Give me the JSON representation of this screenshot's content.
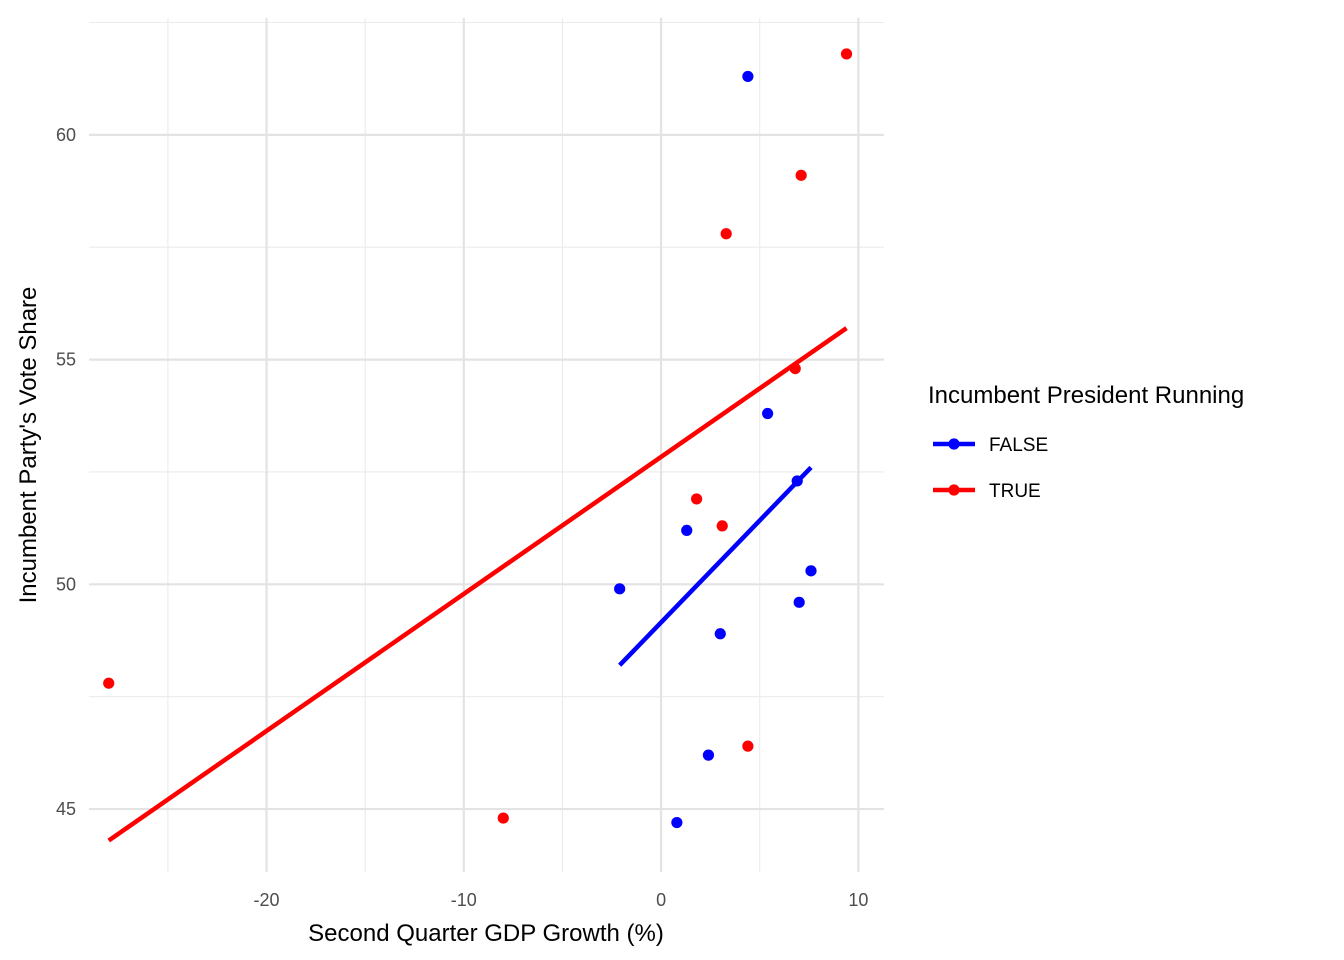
{
  "chart_data": {
    "type": "scatter",
    "title": "",
    "xlabel": "Second Quarter GDP Growth (%)",
    "ylabel": "Incumbent Party's Vote Share",
    "xlim": [
      -29,
      11.3
    ],
    "ylim": [
      43.6,
      62.6
    ],
    "x_major_ticks": [
      -20,
      -10,
      0,
      10
    ],
    "x_minor_ticks": [
      -25,
      -15,
      -5,
      5
    ],
    "y_major_ticks": [
      45,
      50,
      55,
      60
    ],
    "y_minor_ticks": [
      47.5,
      52.5,
      57.5,
      62.5
    ],
    "x_tick_labels": [
      "-20",
      "-10",
      "0",
      "10"
    ],
    "y_tick_labels": [
      "45",
      "50",
      "55",
      "60"
    ],
    "grid": true,
    "legend": {
      "title": "Incumbent President Running",
      "position": "right"
    },
    "series": [
      {
        "name": "FALSE",
        "color": "#0000ff",
        "points": [
          {
            "x": 4.4,
            "y": 61.3
          },
          {
            "x": 5.4,
            "y": 53.8
          },
          {
            "x": 6.9,
            "y": 52.3
          },
          {
            "x": 1.3,
            "y": 51.2
          },
          {
            "x": -2.1,
            "y": 49.9
          },
          {
            "x": 7.6,
            "y": 50.3
          },
          {
            "x": 7.0,
            "y": 49.6
          },
          {
            "x": 3.0,
            "y": 48.9
          },
          {
            "x": 2.4,
            "y": 46.2
          },
          {
            "x": 0.8,
            "y": 44.7
          }
        ],
        "fit_line": {
          "x": [
            -2.1,
            7.6
          ],
          "y": [
            48.2,
            52.6
          ]
        }
      },
      {
        "name": "TRUE",
        "color": "#ff0000",
        "points": [
          {
            "x": 9.4,
            "y": 61.8
          },
          {
            "x": 7.1,
            "y": 59.1
          },
          {
            "x": 3.3,
            "y": 57.8
          },
          {
            "x": 6.8,
            "y": 54.8
          },
          {
            "x": 1.8,
            "y": 51.9
          },
          {
            "x": 3.1,
            "y": 51.3
          },
          {
            "x": -28.0,
            "y": 47.8
          },
          {
            "x": 4.4,
            "y": 46.4
          },
          {
            "x": -8.0,
            "y": 44.8
          }
        ],
        "fit_line": {
          "x": [
            -28.0,
            9.4
          ],
          "y": [
            44.3,
            55.7
          ]
        }
      }
    ]
  }
}
